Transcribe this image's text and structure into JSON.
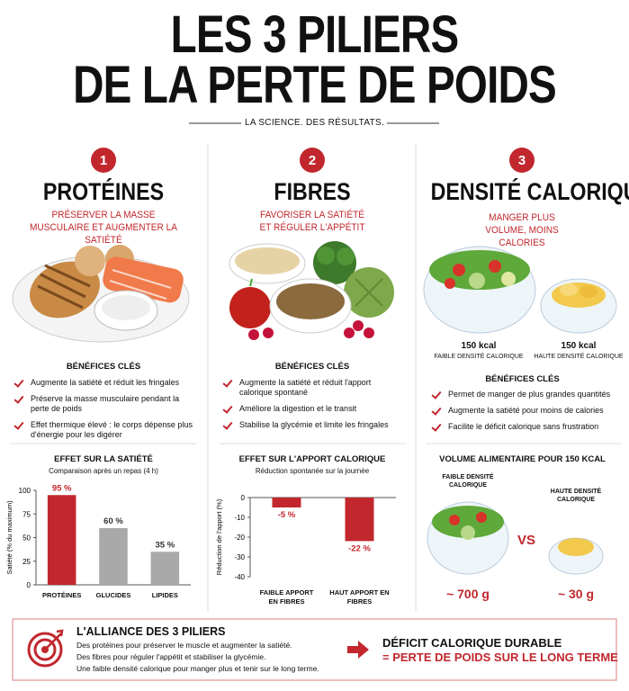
{
  "header": {
    "title_line1": "LES 3 PILIERS",
    "title_line2": "DE LA PERTE DE POIDS",
    "tagline": "LA SCIENCE. DES RÉSULTATS."
  },
  "pillars": [
    {
      "number": "1",
      "title": "PROTÉINES",
      "subtitle": "PRÉSERVER LA MASSE MUSCULAIRE ET AUGMENTER LA SATIÉTÉ",
      "benefits_title": "BÉNÉFICES CLÉS",
      "benefits": [
        "Augmente la satiété et réduit les fringales",
        "Préserve la masse musculaire pendant la perte de poids",
        "Effet thermique élevé : le corps dépense plus d'énergie pour les digérer"
      ]
    },
    {
      "number": "2",
      "title": "FIBRES",
      "subtitle": "FAVORISER LA SATIÉTÉ ET RÉGULER L'APPÉTIT",
      "benefits_title": "BÉNÉFICES CLÉS",
      "benefits": [
        "Augmente la satiété et réduit l'apport calorique spontané",
        "Améliore la digestion et le transit",
        "Stabilise la glycémie et limite les fringales"
      ]
    },
    {
      "number": "3",
      "title": "DENSITÉ CALORIQUE",
      "subtitle": "MANGER PLUS VOLUME, MOINS CALORIES",
      "benefits_title": "BÉNÉFICES CLÉS",
      "benefits": [
        "Permet de manger de plus grandes quantités",
        "Augmente la satiété pour moins de calories",
        "Facilite le déficit calorique sans frustration"
      ],
      "comparison": {
        "left_kcal": "150 kcal",
        "left_label": "FAIBLE DENSITÉ CALORIQUE",
        "right_kcal": "150 kcal",
        "right_label": "HAUTE DENSITÉ CALORIQUE"
      }
    }
  ],
  "volume": {
    "title": "VOLUME ALIMENTAIRE POUR 150 KCAL",
    "left_label": "FAIBLE DENSITÉ CALORIQUE",
    "right_label": "HAUTE DENSITÉ CALORIQUE",
    "vs": "VS",
    "left_weight": "~ 700 g",
    "right_weight": "~ 30 g"
  },
  "chart_data": [
    {
      "type": "bar",
      "title": "EFFET SUR LA SATIÉTÉ",
      "subtitle": "Comparaison après un repas (4 h)",
      "y_label": "Satiété (% du maximum)",
      "categories": [
        "PROTÉINES",
        "GLUCIDES",
        "LIPIDES"
      ],
      "values": [
        95,
        60,
        35
      ],
      "value_labels": [
        "95 %",
        "60 %",
        "35 %"
      ],
      "colors": [
        "#c1272d",
        "#a9a9a9",
        "#a9a9a9"
      ],
      "value_label_colors": [
        "#c1272d",
        "#333333",
        "#333333"
      ],
      "ylim": [
        0,
        100
      ],
      "yticks": [
        0,
        25,
        50,
        75,
        100
      ]
    },
    {
      "type": "bar",
      "title": "EFFET SUR L'APPORT CALORIQUE",
      "subtitle": "Réduction spontanée sur la journée",
      "y_label": "Réduction de l'apport (%)",
      "categories": [
        "FAIBLE APPORT EN FIBRES",
        "HAUT APPORT EN FIBRES"
      ],
      "values": [
        -5,
        -22
      ],
      "value_labels": [
        "-5 %",
        "-22 %"
      ],
      "colors": [
        "#c1272d",
        "#c1272d"
      ],
      "value_label_colors": [
        "#c1272d",
        "#c1272d"
      ],
      "ylim": [
        -40,
        0
      ],
      "yticks": [
        0,
        -10,
        -20,
        -30,
        -40
      ]
    }
  ],
  "footer": {
    "title": "L'ALLIANCE DES 3 PILIERS",
    "lines": [
      "Des protéines pour préserver le muscle et augmenter la satiété.",
      "Des fibres pour réguler l'appétit et stabiliser la glycémie.",
      "Une faible densité calorique pour manger plus et tenir sur le long terme."
    ],
    "result_line1": "DÉFICIT CALORIQUE DURABLE",
    "result_line2": "= PERTE DE POIDS SUR LE LONG TERME"
  }
}
